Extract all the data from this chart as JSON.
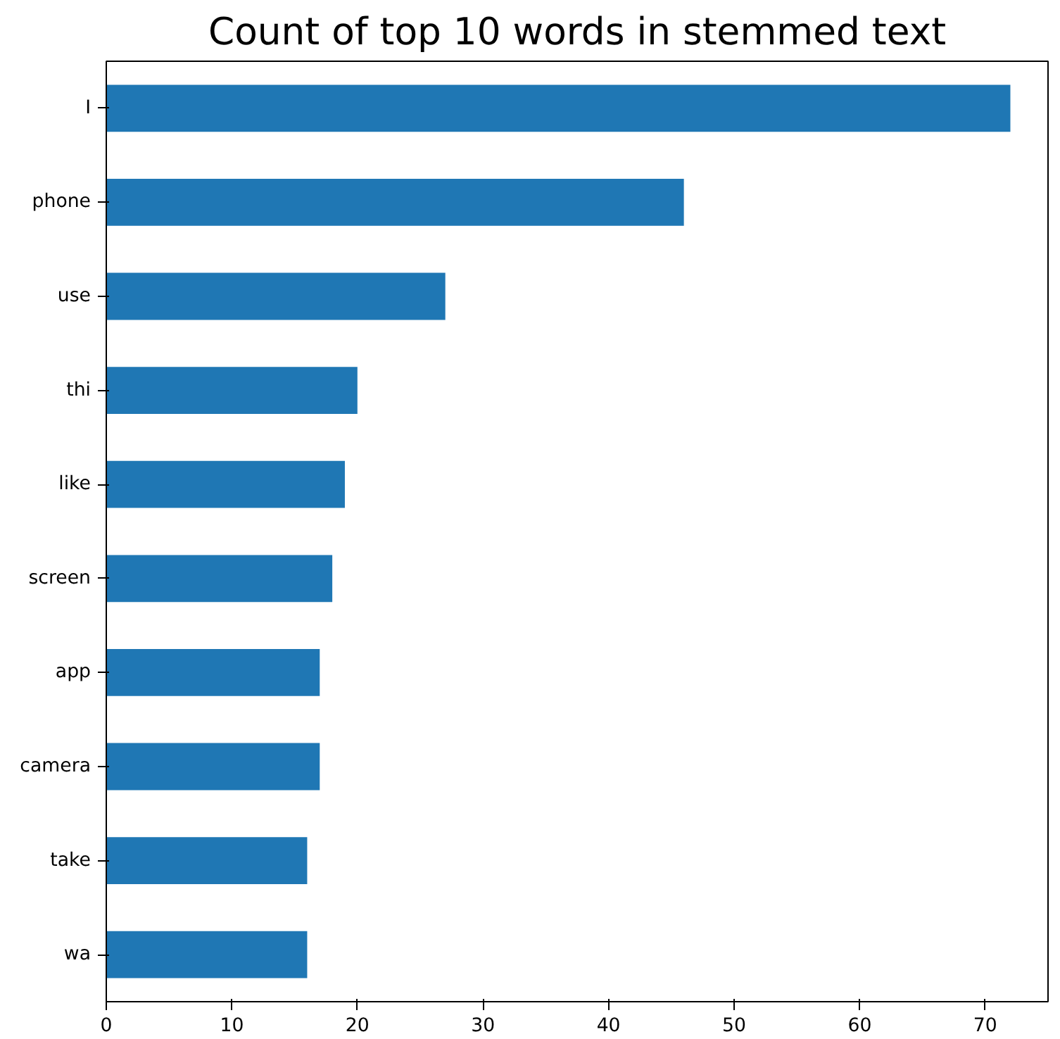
{
  "chart_data": {
    "type": "bar",
    "orientation": "horizontal",
    "title": "Count of top 10 words in stemmed text",
    "categories": [
      "I",
      "phone",
      "use",
      "thi",
      "like",
      "screen",
      "app",
      "camera",
      "take",
      "wa"
    ],
    "values": [
      72,
      46,
      27,
      20,
      19,
      18,
      17,
      17,
      16,
      16
    ],
    "color": "#1f77b4",
    "xlim": [
      0,
      75
    ],
    "xticks": [
      0,
      10,
      20,
      30,
      40,
      50,
      60,
      70
    ],
    "grid": false
  }
}
